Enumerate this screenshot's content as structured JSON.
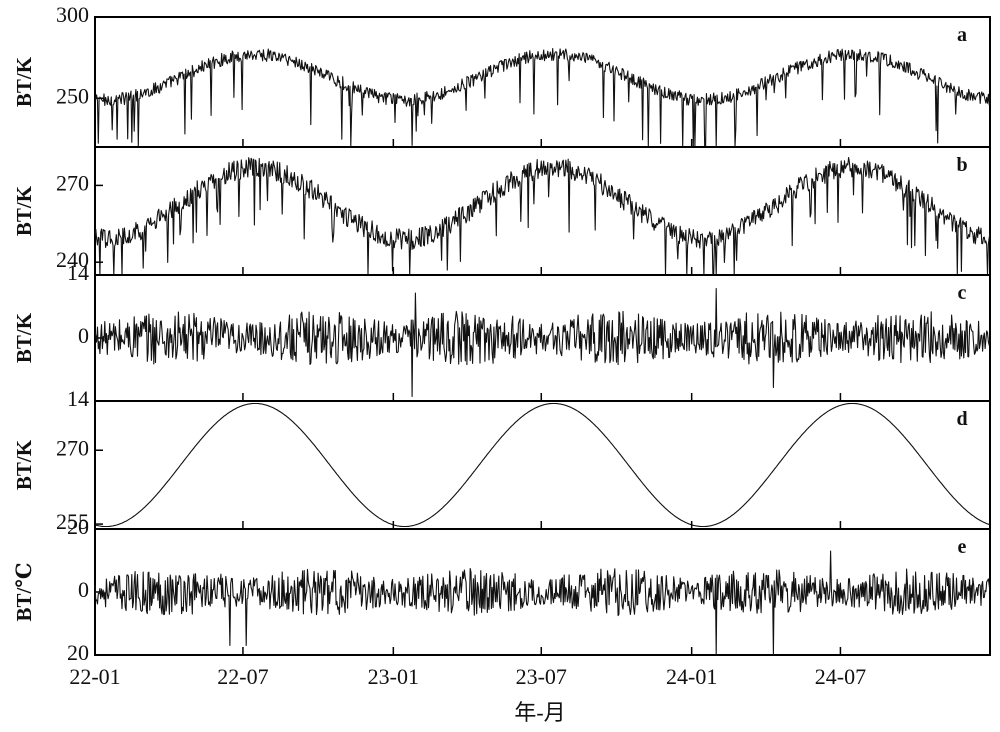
{
  "chart_data": [
    {
      "id": "a",
      "type": "line",
      "panel_label": "a",
      "ylabel": "BT/K",
      "yticks": [
        "300",
        "250"
      ],
      "ylim": [
        220,
        300
      ],
      "mean": 263,
      "amp": 14,
      "phase_days": 196,
      "noise": 4,
      "dips": [
        250,
        215,
        210,
        255,
        245,
        225,
        215,
        260,
        255
      ],
      "extreme": [
        [
          40,
          225
        ],
        [
          110,
          228
        ],
        [
          388,
          221
        ],
        [
          760,
          219
        ],
        [
          783,
          218
        ],
        [
          810,
          227
        ]
      ]
    },
    {
      "id": "b",
      "type": "line",
      "panel_label": "b",
      "ylabel": "BT/K",
      "yticks": [
        "270",
        "240"
      ],
      "ylim": [
        235,
        285
      ],
      "mean": 263,
      "amp": 14,
      "phase_days": 196,
      "noise": 4,
      "dips": [
        257,
        249
      ],
      "extreme": [
        [
          20,
          249
        ],
        [
          388,
          245
        ],
        [
          760,
          235
        ]
      ]
    },
    {
      "id": "c",
      "type": "line",
      "panel_label": "c",
      "ylabel": "BT/K",
      "yticks": [
        "14",
        "0",
        "14"
      ],
      "ylim": [
        -14,
        14
      ],
      "mean": 0,
      "amp": 0,
      "phase_days": 0,
      "noise": 4,
      "extreme": [
        [
          388,
          -13
        ],
        [
          392,
          10
        ],
        [
          760,
          11
        ],
        [
          830,
          -11
        ]
      ]
    },
    {
      "id": "d",
      "type": "line",
      "panel_label": "d",
      "ylabel": "BT/K",
      "yticks": [
        "270",
        "255"
      ],
      "ylim": [
        254,
        280
      ],
      "mean": 267,
      "amp": 12.5,
      "phase_days": 196
    },
    {
      "id": "e",
      "type": "line",
      "panel_label": "e",
      "ylabel": "BT/℃",
      "yticks": [
        "20",
        "0",
        "20"
      ],
      "ylim": [
        -20,
        20
      ],
      "mean": 0,
      "amp": 0,
      "phase_days": 0,
      "noise": 5,
      "extreme": [
        [
          165,
          -17
        ],
        [
          185,
          -17
        ],
        [
          760,
          -20
        ],
        [
          830,
          -20
        ],
        [
          900,
          13
        ]
      ]
    }
  ],
  "x_axis": {
    "label": "年-月",
    "tick_labels": [
      "22-01",
      "22-07",
      "23-01",
      "23-07",
      "24-01",
      "24-07"
    ],
    "tick_days": [
      0,
      181,
      365,
      546,
      730,
      912
    ],
    "range_days": [
      0,
      1095
    ]
  }
}
